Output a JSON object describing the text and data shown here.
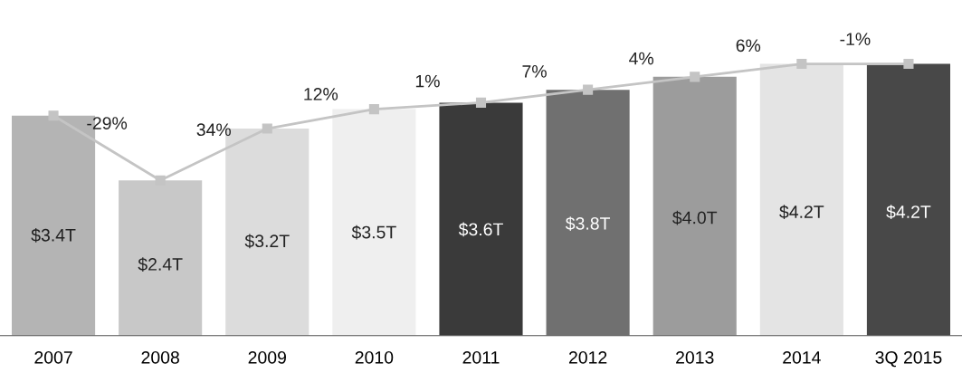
{
  "chart_data": {
    "type": "bar",
    "categories": [
      "2007",
      "2008",
      "2009",
      "2010",
      "2011",
      "2012",
      "2013",
      "2014",
      "3Q 2015"
    ],
    "series": [
      {
        "colors": [
          "#b4b4b4",
          "#c8c8c8",
          "#dcdcdc",
          "#efefef",
          "#3a3a3a",
          "#707070",
          "#9c9c9c",
          "#e4e4e4",
          "#484848"
        ],
        "values": [
          3.4,
          2.4,
          3.2,
          3.5,
          3.6,
          3.8,
          4.0,
          4.2,
          4.2
        ],
        "value_labels": [
          "$3.4T",
          "$2.4T",
          "$3.2T",
          "$3.5T",
          "$3.6T",
          "$3.8T",
          "$4.0T",
          "$4.2T",
          "$4.2T"
        ]
      },
      {
        "type": "line",
        "color": "#c4c4c4",
        "marker": "square",
        "values": [
          3.4,
          2.4,
          3.2,
          3.5,
          3.6,
          3.8,
          4.0,
          4.2,
          4.2
        ]
      }
    ],
    "annotations": [
      "-29%",
      "34%",
      "12%",
      "1%",
      "7%",
      "4%",
      "6%",
      "-1%"
    ],
    "grid": false,
    "legend": false
  }
}
